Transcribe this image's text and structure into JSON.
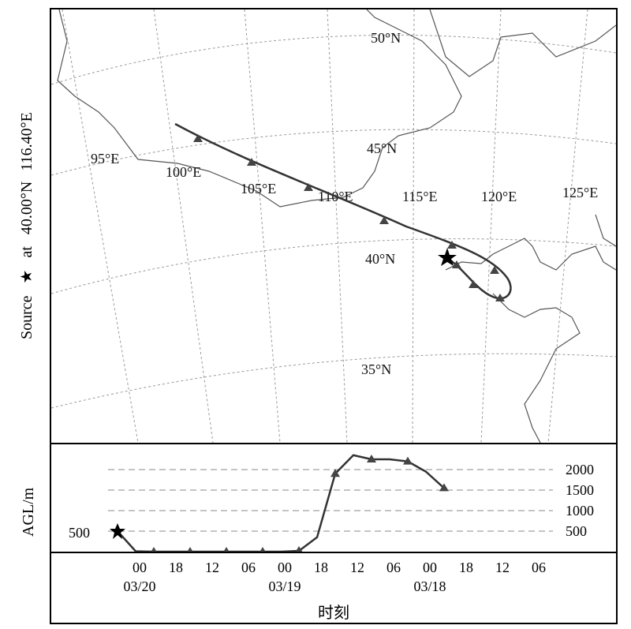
{
  "chart_data": {
    "type": "line",
    "title": "",
    "source_label": {
      "prefix": "Source",
      "star": "★",
      "word": "at",
      "lat": "40.00°N",
      "lon": "116.40°E"
    },
    "map": {
      "lon_labels": [
        "95°E",
        "100°E",
        "105°E",
        "110°E",
        "115°E",
        "120°E",
        "125°E"
      ],
      "lat_labels": [
        "50°N",
        "45°N",
        "40°N",
        "35°N"
      ],
      "trajectory_markers": "triangle",
      "source_marker": "star"
    },
    "profile": {
      "ylabel": "AGL/m",
      "y_ticks": [
        "500",
        "1000",
        "1500",
        "2000"
      ],
      "y_left_tick": "500",
      "ylim": [
        0,
        2500
      ],
      "xlabel": "时刻",
      "hour_ticks": [
        "00",
        "18",
        "12",
        "06",
        "00",
        "18",
        "12",
        "06",
        "00",
        "18",
        "12",
        "06"
      ],
      "date_ticks": [
        "03/20",
        "03/19",
        "03/18"
      ],
      "series": [
        {
          "x_hours_before_start": [
            0,
            6,
            12,
            18,
            24,
            30,
            36,
            42,
            48,
            54,
            60,
            66,
            72,
            78,
            84,
            90,
            96,
            102,
            108
          ],
          "agl_m": [
            500,
            10,
            0,
            0,
            0,
            0,
            0,
            0,
            0,
            0,
            20,
            350,
            1900,
            2350,
            2250,
            2250,
            2200,
            1950,
            1550
          ]
        }
      ]
    }
  }
}
